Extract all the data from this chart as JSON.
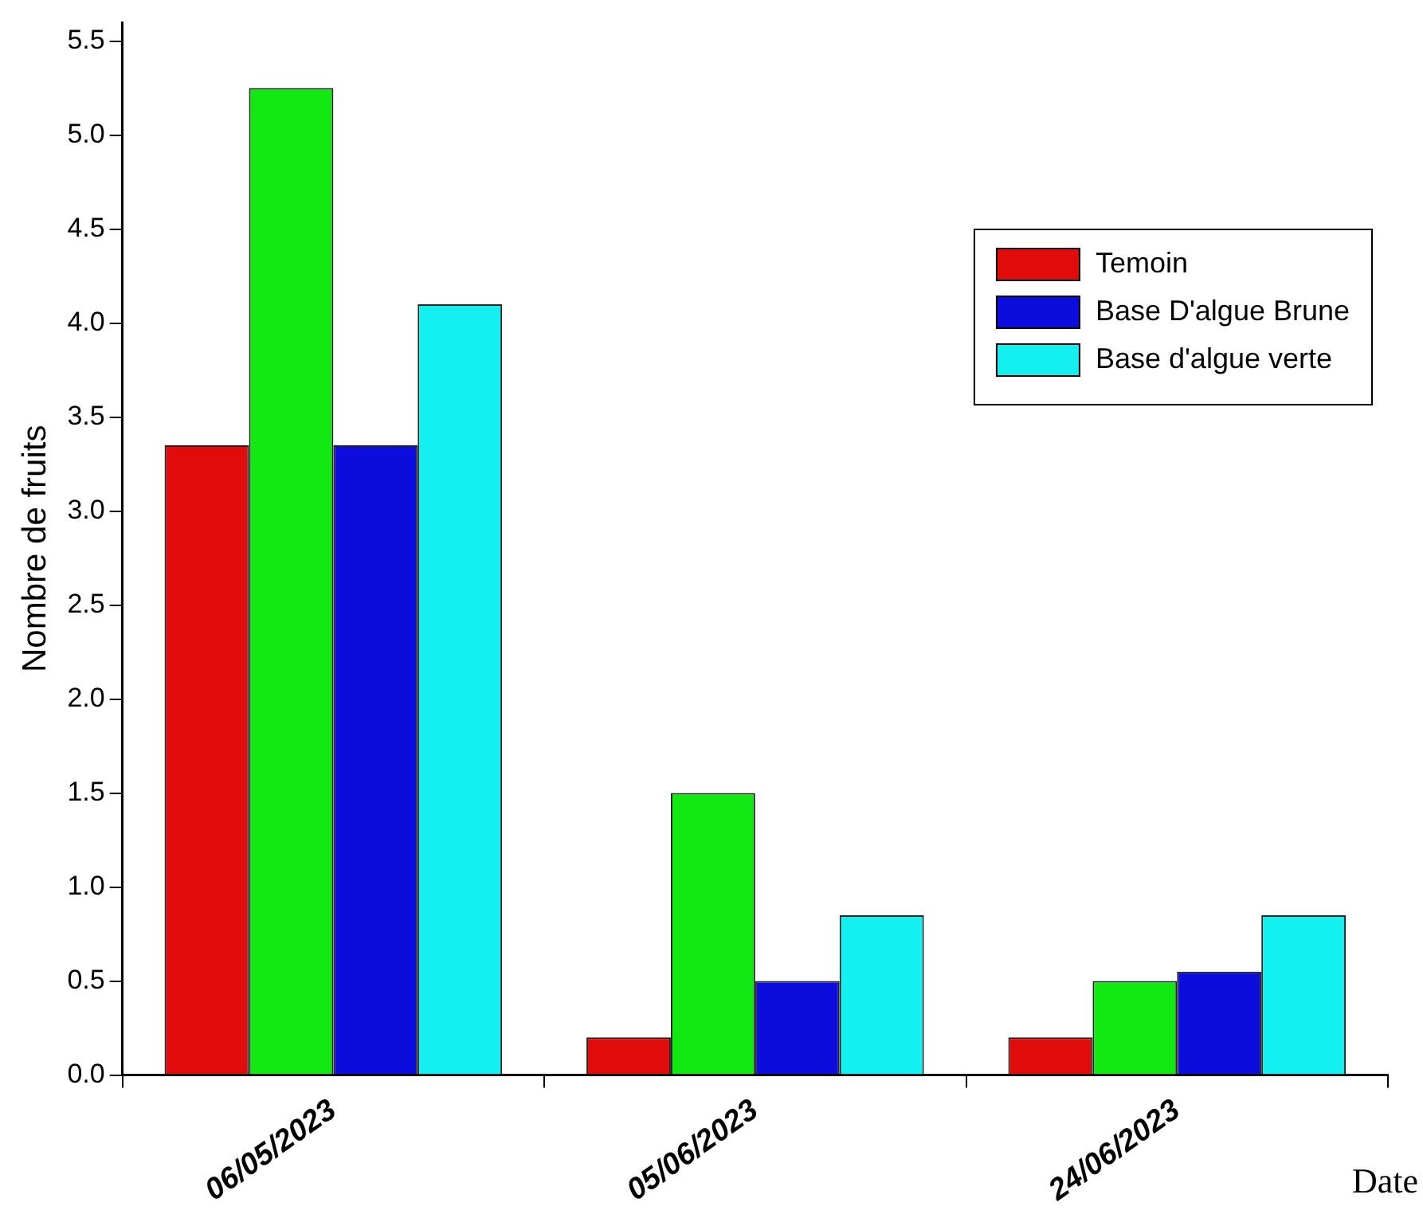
{
  "chart_data": {
    "type": "bar",
    "xlabel": "Date",
    "ylabel": "Nombre de fruits",
    "categories": [
      "06/05/2023",
      "05/06/2023",
      "24/06/2023"
    ],
    "series": [
      {
        "name": "Temoin",
        "color": "#e00c0c",
        "values": [
          3.35,
          0.2,
          0.2
        ]
      },
      {
        "color": "#12e812",
        "values": [
          5.25,
          1.5,
          0.5
        ]
      },
      {
        "name": "Base D'algue Brune",
        "color": "#0c0cdc",
        "values": [
          3.35,
          0.5,
          0.55
        ]
      },
      {
        "name": "Base d'algue verte",
        "color": "#14f0f0",
        "values": [
          4.1,
          0.85,
          0.85
        ]
      }
    ],
    "ylim": [
      0,
      5.6
    ],
    "yticks": [
      {
        "value": 0,
        "label": "0.0"
      },
      0.5,
      {
        "value": 1,
        "label": "1.0"
      },
      1.5,
      {
        "value": 2,
        "label": "2.0"
      },
      2.5,
      {
        "value": 3,
        "label": "3.0"
      },
      3.5,
      {
        "value": 4,
        "label": "4.0"
      },
      4.5,
      {
        "value": 5,
        "label": "5.0"
      },
      5.5
    ],
    "grid": false,
    "legend": "top right"
  }
}
